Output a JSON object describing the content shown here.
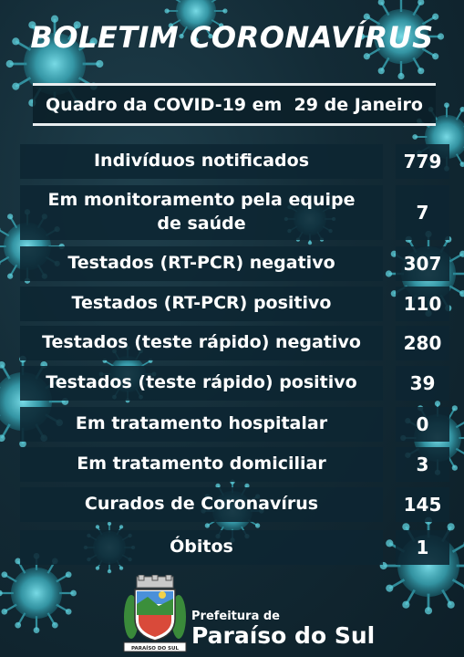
{
  "header": {
    "title": "BOLETIM CORONAVÍRUS",
    "subtitle": "Quadro da COVID-19 em  29 de Janeiro"
  },
  "stats": [
    {
      "label": "Indivíduos notificados",
      "value": "779"
    },
    {
      "label": "Em monitoramento pela equipe de saúde",
      "value": "7"
    },
    {
      "label": "Testados (RT-PCR) negativo",
      "value": "307"
    },
    {
      "label": "Testados (RT-PCR) positivo",
      "value": "110"
    },
    {
      "label": "Testados (teste rápido) negativo",
      "value": "280"
    },
    {
      "label": "Testados (teste rápido) positivo",
      "value": "39"
    },
    {
      "label": "Em tratamento hospitalar",
      "value": "0"
    },
    {
      "label": "Em tratamento domiciliar",
      "value": "3"
    },
    {
      "label": "Curados de Coronavírus",
      "value": "145"
    },
    {
      "label": "Óbitos",
      "value": "1"
    }
  ],
  "footer": {
    "org_line1": "Prefeitura de",
    "org_line2": "Paraíso do Sul",
    "crest_text": "PARAÍSO DO SUL"
  },
  "colors": {
    "background": "#132b36",
    "cell": "#0c2632",
    "virus": "#3fb8c8",
    "text": "#ffffff"
  }
}
